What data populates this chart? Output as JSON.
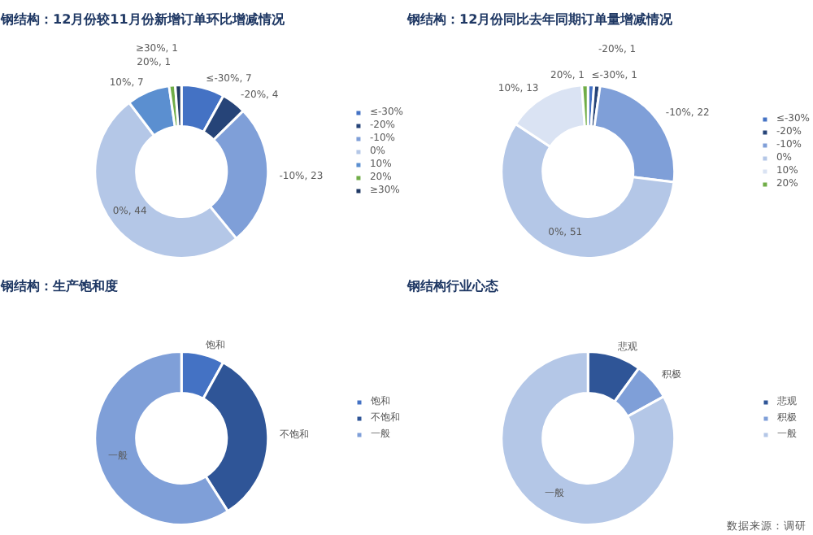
{
  "chart_data": [
    {
      "type": "donut",
      "title": "钢结构：12月份较11月份新增订单环比增减情况",
      "categories": [
        "≤-30%",
        "-20%",
        "-10%",
        "0%",
        "10%",
        "20%",
        "≥30%"
      ],
      "values": [
        7,
        4,
        23,
        44,
        7,
        1,
        1
      ],
      "colors": [
        "#4472c4",
        "#264478",
        "#7f9fd8",
        "#b4c7e7",
        "#5b8fd0",
        "#70ad47",
        "#1f3864"
      ],
      "value_labels": [
        "≤-30%, 7",
        "-20%, 4",
        "-10%, 23",
        "0%, 44",
        "10%, 7",
        "20%, 1",
        "≥30%, 1"
      ],
      "legend": "right"
    },
    {
      "type": "donut",
      "title": "钢结构：12月份同比去年同期订单量增减情况",
      "categories": [
        "≤-30%",
        "-20%",
        "-10%",
        "0%",
        "10%",
        "20%"
      ],
      "values": [
        1,
        1,
        22,
        51,
        13,
        1
      ],
      "colors": [
        "#4472c4",
        "#264478",
        "#7f9fd8",
        "#b4c7e7",
        "#dae3f3",
        "#70ad47"
      ],
      "value_labels": [
        "≤-30%, 1",
        "-20%, 1",
        "-10%, 22",
        "0%, 51",
        "10%, 13",
        "20%, 1"
      ],
      "legend": "right"
    },
    {
      "type": "donut",
      "title": "钢结构：生产饱和度",
      "categories": [
        "饱和",
        "不饱和",
        "一般"
      ],
      "values": [
        8,
        33,
        59
      ],
      "colors": [
        "#4472c4",
        "#2f5597",
        "#7f9fd8"
      ],
      "value_labels": [
        "饱和",
        "不饱和",
        "一般"
      ],
      "legend": "right"
    },
    {
      "type": "donut",
      "title": "钢结构行业心态",
      "categories": [
        "悲观",
        "积极",
        "一般"
      ],
      "values": [
        10,
        7,
        83
      ],
      "colors": [
        "#2f5597",
        "#7f9fd8",
        "#b4c7e7"
      ],
      "value_labels": [
        "悲观",
        "积极",
        "一般"
      ],
      "legend": "right",
      "annotations": [
        "数据来源：调研"
      ]
    }
  ]
}
